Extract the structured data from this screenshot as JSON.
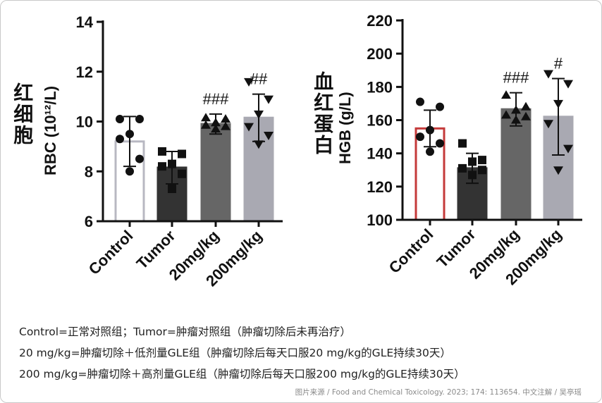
{
  "chart_data": [
    {
      "type": "bar",
      "side_label": "红细胞",
      "ylabel": "RBC (10¹²/L)",
      "ylim": [
        6,
        14
      ],
      "yticks": [
        "6",
        "8",
        "10",
        "12",
        "14"
      ],
      "categories": [
        "Control",
        "Tumor",
        "20mg/kg",
        "200mg/kg"
      ],
      "values": [
        9.2,
        8.15,
        9.9,
        10.15
      ],
      "errors": [
        1.0,
        0.65,
        0.4,
        0.95
      ],
      "points": [
        [
          10.1,
          10.1,
          9.5,
          9.3,
          8.5,
          8.0
        ],
        [
          8.8,
          8.7,
          8.3,
          8.2,
          7.9,
          7.3
        ],
        [
          10.15,
          10.1,
          9.95,
          9.85,
          9.8,
          9.7
        ],
        [
          11.6,
          10.9,
          10.3,
          9.8,
          9.45,
          9.1
        ]
      ],
      "markers": [
        "circle",
        "square",
        "triangle-up",
        "triangle-down"
      ],
      "fills": [
        "#ffffff",
        "#333333",
        "#666666",
        "#a9a9b2"
      ],
      "strokes": [
        "#b8b8c2",
        "#333333",
        "#666666",
        "#a9a9b2"
      ],
      "annotations": [
        "",
        "",
        "###",
        "##"
      ]
    },
    {
      "type": "bar",
      "side_label": "血红蛋白",
      "ylabel": "HGB (g/L)",
      "ylim": [
        100,
        220
      ],
      "yticks": [
        "100",
        "120",
        "140",
        "160",
        "180",
        "200",
        "220"
      ],
      "categories": [
        "Control",
        "Tumor",
        "20mg/kg",
        "200mg/kg"
      ],
      "values": [
        155,
        131,
        166.5,
        162
      ],
      "errors": [
        11,
        9,
        10,
        23
      ],
      "points": [
        [
          171,
          168,
          154,
          150,
          146,
          141
        ],
        [
          146,
          136,
          135,
          131,
          130,
          127
        ],
        [
          175,
          168,
          166,
          163,
          162,
          160
        ],
        [
          188,
          182,
          170,
          158,
          143,
          130
        ]
      ],
      "markers": [
        "circle",
        "square",
        "triangle-up",
        "triangle-down"
      ],
      "fills": [
        "#ffffff",
        "#333333",
        "#666666",
        "#a9a9b2"
      ],
      "strokes": [
        "#c43a3a",
        "#333333",
        "#666666",
        "#a9a9b2"
      ],
      "annotations": [
        "",
        "",
        "###",
        "#"
      ]
    }
  ],
  "notes": [
    "Control=正常对照组；Tumor=肿瘤对照组（肿瘤切除后未再治疗）",
    "20 mg/kg=肿瘤切除＋低剂量GLE组（肿瘤切除后每天口服20 mg/kg的GLE持续30天）",
    "200 mg/kg=肿瘤切除＋高剂量GLE组（肿瘤切除后每天口服200 mg/kg的GLE持续30天）"
  ],
  "source": "图片来源 / Food and Chemical Toxicology. 2023; 174: 113654.   中文注解 / 吴亭瑶"
}
